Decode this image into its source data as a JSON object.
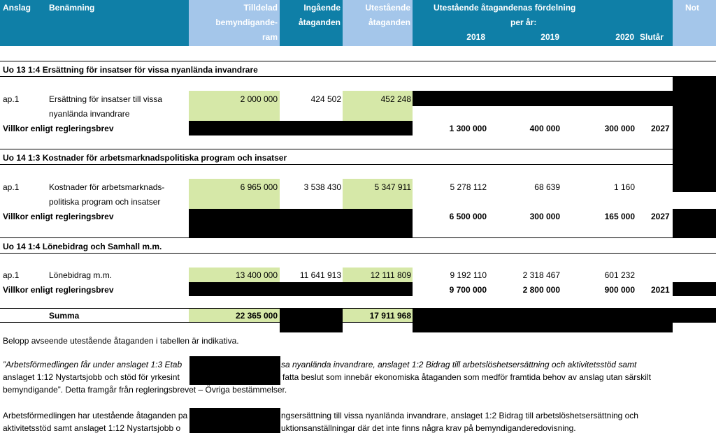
{
  "header": {
    "anslag": "Anslag",
    "benamning": "Benämning",
    "tilldelad_1": "Tilldelad",
    "tilldelad_2": "bemyndigande-",
    "tilldelad_3": "ram",
    "ingaende_1": "Ingående",
    "ingaende_2": "åtaganden",
    "utestaende_1": "Utestående",
    "utestaende_2": "åtaganden",
    "fordelning_1": "Utestående åtagandenas fördelning",
    "fordelning_2": "per år:",
    "y2018": "2018",
    "y2019": "2019",
    "y2020": "2020",
    "slutar": "Slutår",
    "not": "Not"
  },
  "sections": [
    {
      "title": "Uo 13 1:4 Ersättning för insatser för vissa nyanlända invandrare",
      "row": {
        "code": "ap.1",
        "name_1": "Ersättning för insatser till vissa",
        "name_2": "nyanlända invandrare",
        "tilldelad": "2 000 000",
        "ingaende": "424 502",
        "utestaende": "452 248",
        "y2018": "",
        "y2019": "",
        "y2020": ""
      },
      "villkor": {
        "label": "Villkor enligt regleringsbrev",
        "y2018": "1 300 000",
        "y2019": "400 000",
        "y2020": "300 000",
        "slutar": "2027"
      }
    },
    {
      "title": "Uo 14 1:3 Kostnader för arbetsmarknadspolitiska program och insatser",
      "row": {
        "code": "ap.1",
        "name_1": "Kostnader för arbetsmarknads-",
        "name_2": "politiska program och insatser",
        "tilldelad": "6 965 000",
        "ingaende": "3 538 430",
        "utestaende": "5 347 911",
        "y2018": "5 278 112",
        "y2019": "68 639",
        "y2020": "1 160"
      },
      "villkor": {
        "label": "Villkor enligt regleringsbrev",
        "y2018": "6 500 000",
        "y2019": "300 000",
        "y2020": "165 000",
        "slutar": "2027"
      }
    },
    {
      "title": "Uo 14 1:4 Lönebidrag och Samhall m.m.",
      "row": {
        "code": "ap.1",
        "name_1": "Lönebidrag m.m.",
        "name_2": "",
        "tilldelad": "13 400 000",
        "ingaende": "11 641 913",
        "utestaende": "12 111 809",
        "y2018": "9 192 110",
        "y2019": "2 318 467",
        "y2020": "601 232"
      },
      "villkor": {
        "label": "Villkor enligt regleringsbrev",
        "y2018": "9 700 000",
        "y2019": "2 800 000",
        "y2020": "900 000",
        "slutar": "2021"
      }
    }
  ],
  "summa": {
    "label": "Summa",
    "tilldelad": "22 365 000",
    "utestaende": "17 911 968"
  },
  "notes": {
    "p1": "Belopp avseende utestående åtaganden i tabellen är indikativa.",
    "p2_line1_a": "”Arbetsförmedlingen får under anslaget 1:3 Etab",
    "p2_line1_b": "sa nyanlända invandrare, anslaget 1:2 Bidrag till arbetslöshetsersättning och aktivitetsstöd samt",
    "p2_line2_a": "anslaget 1:12 Nystartsjobb och stöd för yrkesint",
    "p2_line2_b": "fatta beslut som innebär ekonomiska åtaganden som medför framtida behov av anslag utan särskilt",
    "p2_line3": "bemyndigande”. Detta framgår från regleringsbrevet – Övriga bestämmelser.",
    "p3_line1_a": "Arbetsförmedlingen har utestående åtaganden pa",
    "p3_line1_b": "ngsersättning till vissa nyanlända invandrare, anslaget 1:2 Bidrag till arbetslöshetsersättning och",
    "p3_line2_a": "aktivitetsstöd samt anslaget 1:12 Nystartsjobb o",
    "p3_line2_b": "uktionsanställningar där det inte finns några krav på bemyndiganderedovisning."
  }
}
